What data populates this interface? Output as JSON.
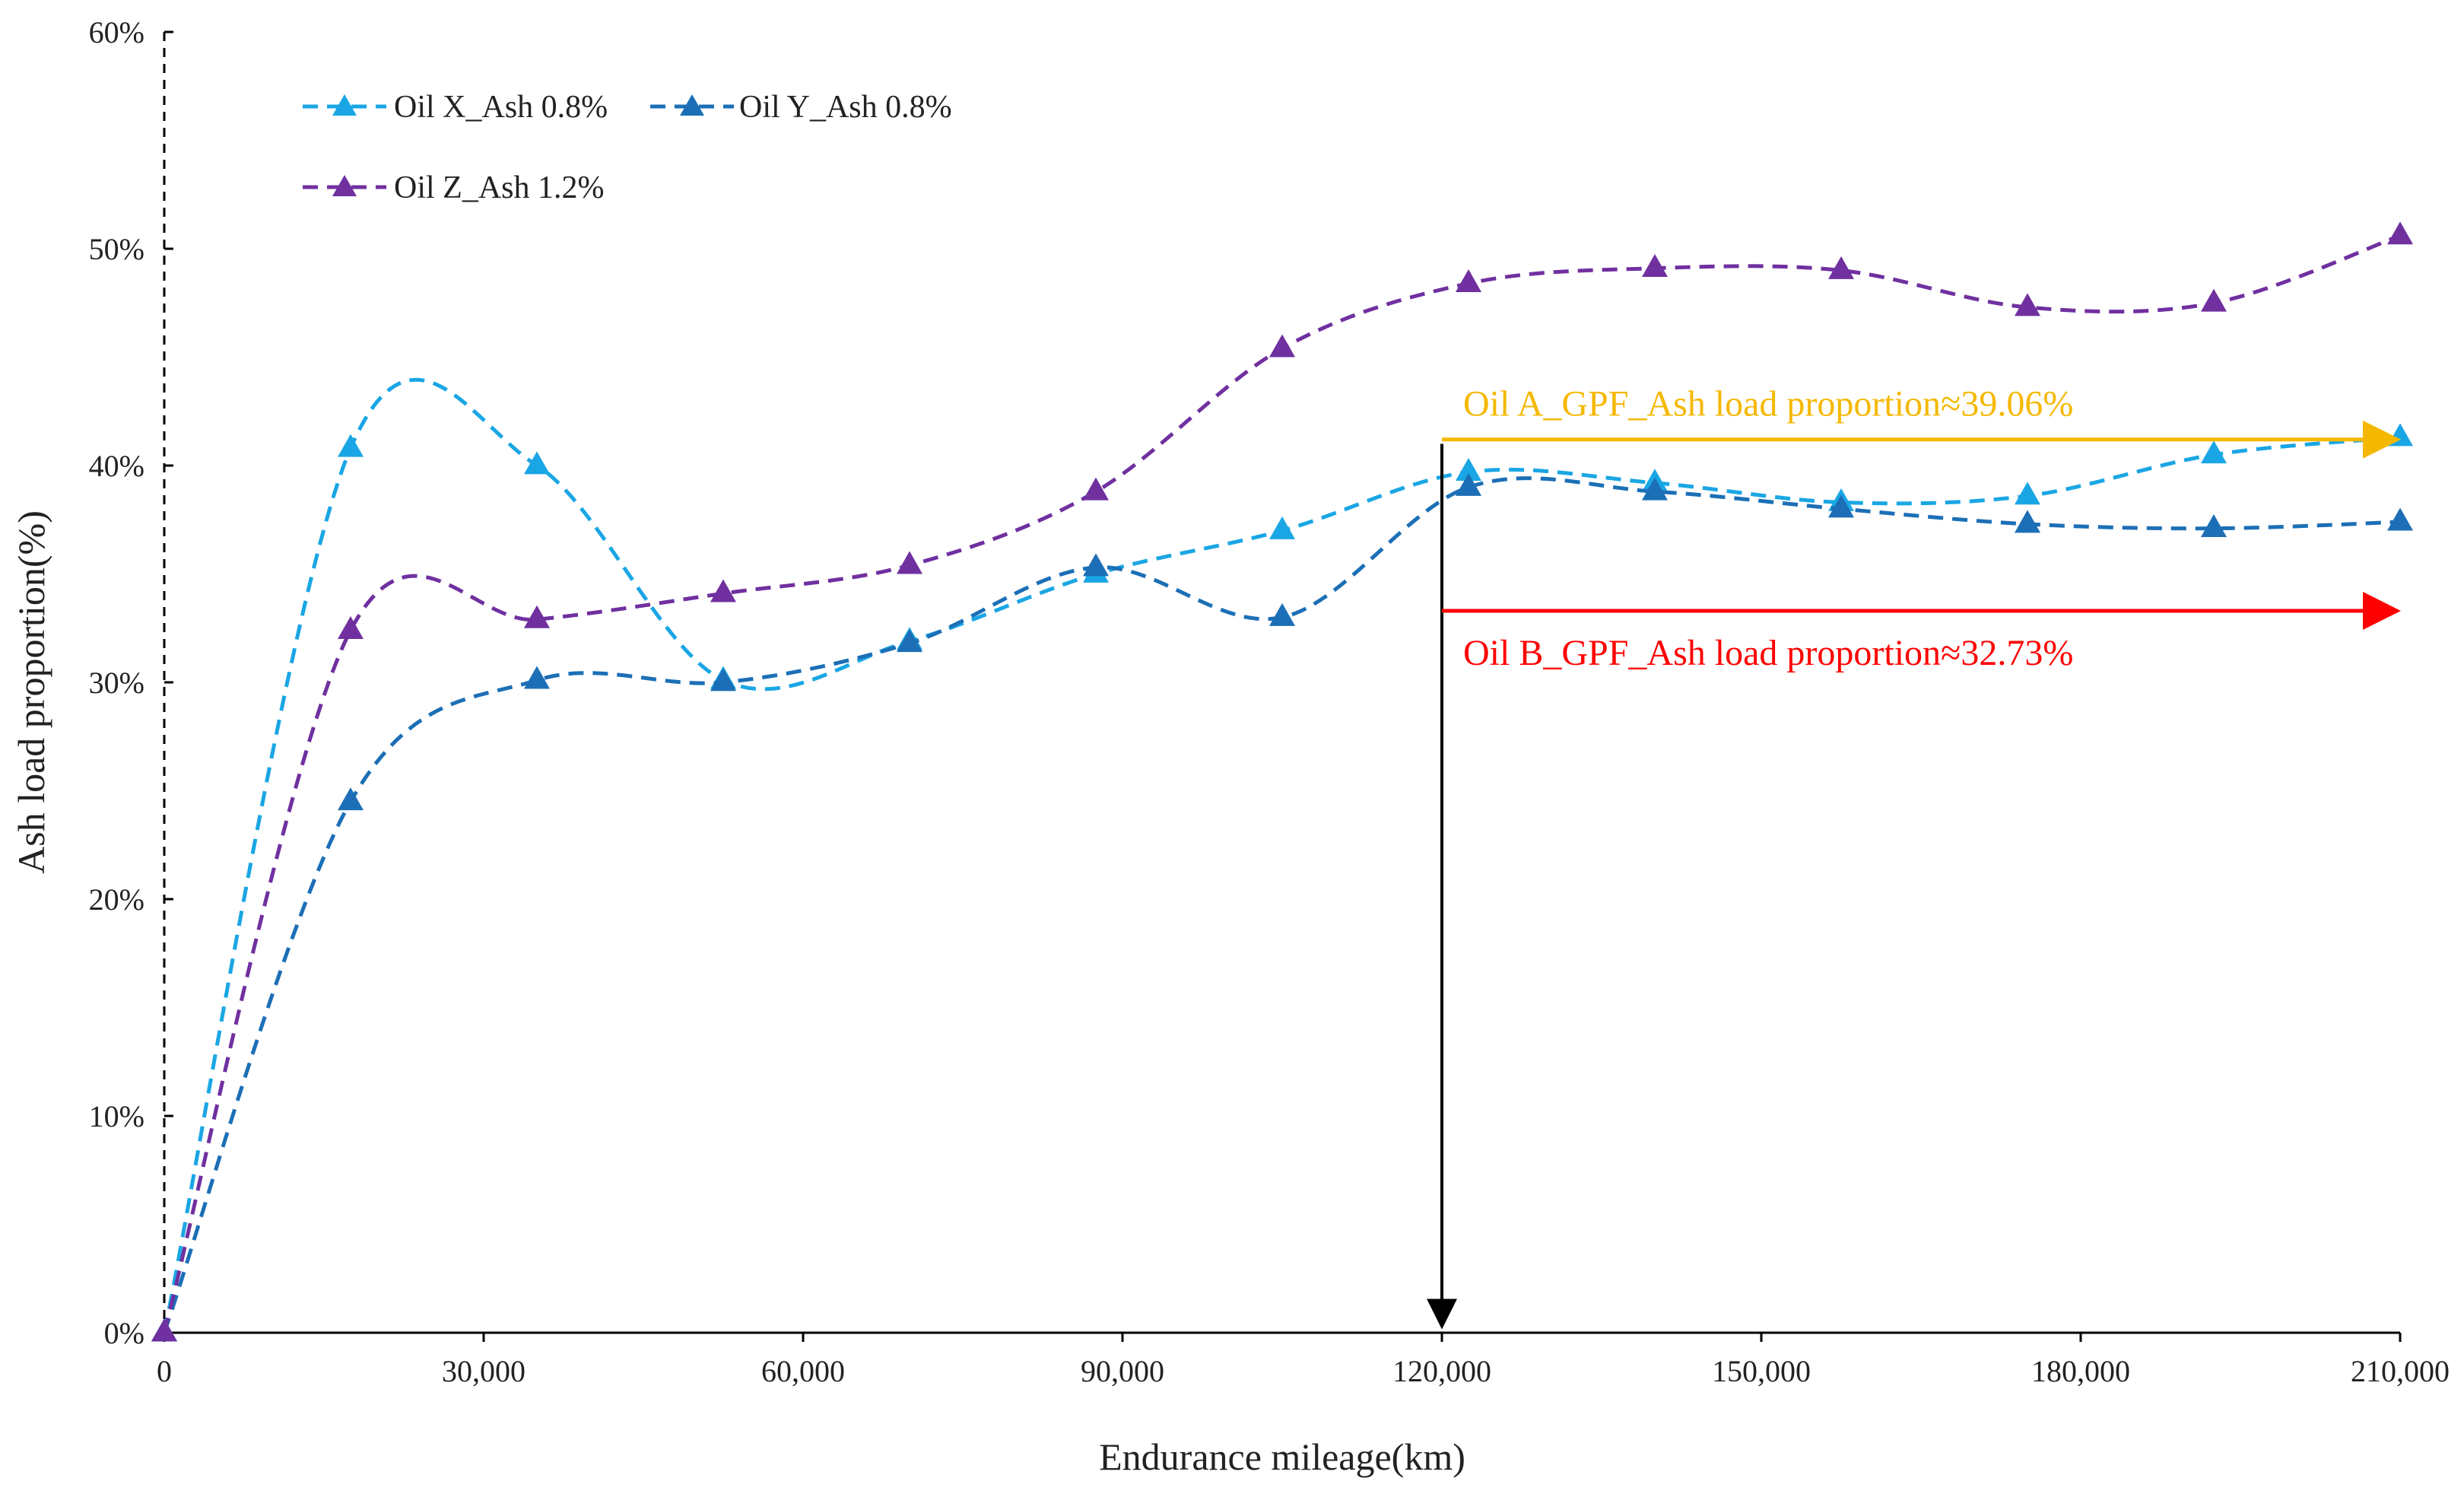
{
  "chart_data": {
    "type": "line",
    "title": "",
    "xlabel": "Endurance mileage(km)",
    "ylabel": "Ash load proportion(%)",
    "xlim": [
      0,
      210000
    ],
    "ylim": [
      0,
      60
    ],
    "grid": false,
    "legend_position": "top-left",
    "x_ticks": [
      {
        "value": 0,
        "label": "0"
      },
      {
        "value": 30000,
        "label": "30,000"
      },
      {
        "value": 60000,
        "label": "60,000"
      },
      {
        "value": 90000,
        "label": "90,000"
      },
      {
        "value": 120000,
        "label": "120,000"
      },
      {
        "value": 150000,
        "label": "150,000"
      },
      {
        "value": 180000,
        "label": "180,000"
      },
      {
        "value": 210000,
        "label": "210,000"
      }
    ],
    "y_ticks": [
      {
        "value": 0,
        "label": "0%"
      },
      {
        "value": 10,
        "label": "10%"
      },
      {
        "value": 20,
        "label": "20%"
      },
      {
        "value": 30,
        "label": "30%"
      },
      {
        "value": 40,
        "label": "40%"
      },
      {
        "value": 50,
        "label": "50%"
      },
      {
        "value": 60,
        "label": "60%"
      }
    ],
    "series": [
      {
        "name": "Oil X_Ash 0.8%",
        "color": "#1aa6e4",
        "marker": "triangle",
        "line_style": "dashed",
        "x": [
          0,
          17500,
          35000,
          52500,
          70000,
          87500,
          105000,
          122500,
          140000,
          157500,
          175000,
          192500,
          210000
        ],
        "y": [
          0,
          40.8,
          40.0,
          30.1,
          31.9,
          35.0,
          37.0,
          39.7,
          39.2,
          38.3,
          38.6,
          40.5,
          41.3
        ]
      },
      {
        "name": "Oil Y_Ash 0.8%",
        "color": "#1c6fb6",
        "marker": "triangle",
        "line_style": "dashed",
        "x": [
          0,
          17500,
          35000,
          52500,
          70000,
          87500,
          105000,
          122500,
          140000,
          157500,
          175000,
          192500,
          210000
        ],
        "y": [
          0,
          24.5,
          30.1,
          30.0,
          31.8,
          35.3,
          33.0,
          39.0,
          38.8,
          38.0,
          37.3,
          37.1,
          37.4
        ]
      },
      {
        "name": "Oil Z_Ash 1.2%",
        "color": "#7030a0",
        "marker": "triangle",
        "line_style": "dashed",
        "x": [
          0,
          17500,
          35000,
          52500,
          70000,
          87500,
          105000,
          122500,
          140000,
          157500,
          175000,
          192500,
          210000
        ],
        "y": [
          0,
          32.4,
          32.9,
          34.1,
          35.4,
          38.8,
          45.4,
          48.4,
          49.1,
          49.0,
          47.3,
          47.5,
          50.6
        ]
      }
    ],
    "annotations": [
      {
        "name": "oil-a",
        "text": "Oil A_GPF_Ash load proportion≈39.06%",
        "color": "#f5b800",
        "arrow_from_x": 120000,
        "arrow_to_x": 210000,
        "arrow_y": 41.2,
        "text_x": 122000,
        "text_y": 42.3
      },
      {
        "name": "oil-b",
        "text": "Oil B_GPF_Ash load proportion≈32.73%",
        "color": "#ff0000",
        "arrow_from_x": 120000,
        "arrow_to_x": 210000,
        "arrow_y": 33.3,
        "text_x": 122000,
        "text_y": 30.8
      }
    ],
    "vertical_marker": {
      "x": 120000,
      "y_from": 41.0,
      "y_to": 0.3,
      "color": "#000000"
    }
  }
}
